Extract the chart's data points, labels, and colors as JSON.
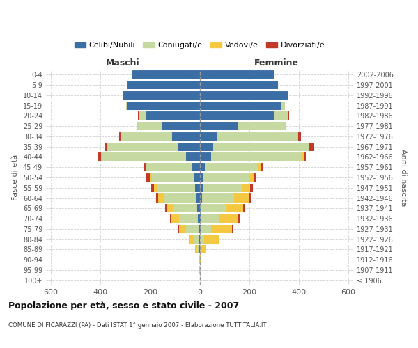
{
  "age_groups": [
    "100+",
    "95-99",
    "90-94",
    "85-89",
    "80-84",
    "75-79",
    "70-74",
    "65-69",
    "60-64",
    "55-59",
    "50-54",
    "45-49",
    "40-44",
    "35-39",
    "30-34",
    "25-29",
    "20-24",
    "15-19",
    "10-14",
    "5-9",
    "0-4"
  ],
  "birth_years": [
    "≤ 1906",
    "1907-1911",
    "1912-1916",
    "1917-1921",
    "1922-1926",
    "1927-1931",
    "1932-1936",
    "1937-1941",
    "1942-1946",
    "1947-1951",
    "1952-1956",
    "1957-1961",
    "1962-1966",
    "1967-1971",
    "1972-1976",
    "1977-1981",
    "1982-1986",
    "1987-1991",
    "1992-1996",
    "1997-2001",
    "2002-2006"
  ],
  "males": {
    "celibi": [
      0,
      0,
      0,
      2,
      3,
      5,
      8,
      10,
      15,
      18,
      22,
      30,
      55,
      85,
      110,
      150,
      215,
      290,
      310,
      290,
      275
    ],
    "coniugati": [
      0,
      0,
      2,
      8,
      20,
      50,
      75,
      95,
      130,
      155,
      170,
      185,
      340,
      285,
      205,
      100,
      30,
      8,
      2,
      0,
      0
    ],
    "vedovi": [
      0,
      1,
      3,
      8,
      20,
      28,
      32,
      28,
      22,
      12,
      8,
      4,
      4,
      3,
      2,
      1,
      2,
      0,
      0,
      0,
      0
    ],
    "divorziati": [
      0,
      0,
      0,
      0,
      0,
      2,
      5,
      5,
      8,
      10,
      14,
      5,
      10,
      10,
      7,
      3,
      2,
      0,
      0,
      0,
      0
    ]
  },
  "females": {
    "nubili": [
      0,
      0,
      0,
      2,
      2,
      3,
      5,
      5,
      10,
      12,
      15,
      20,
      45,
      55,
      70,
      155,
      300,
      330,
      355,
      315,
      300
    ],
    "coniugate": [
      0,
      0,
      2,
      5,
      15,
      42,
      72,
      100,
      130,
      160,
      185,
      215,
      370,
      385,
      325,
      190,
      58,
      15,
      3,
      2,
      0
    ],
    "vedove": [
      0,
      2,
      5,
      20,
      60,
      85,
      78,
      72,
      58,
      32,
      18,
      10,
      5,
      3,
      2,
      1,
      1,
      0,
      0,
      0,
      0
    ],
    "divorziate": [
      0,
      0,
      0,
      0,
      2,
      5,
      8,
      5,
      8,
      12,
      12,
      10,
      10,
      20,
      12,
      5,
      2,
      0,
      0,
      0,
      0
    ]
  },
  "colors": {
    "celibi": "#3b6ea5",
    "coniugati": "#c5d9a0",
    "vedovi": "#f5c842",
    "divorziati": "#c0392b"
  },
  "xlim": 620,
  "title": "Popolazione per età, sesso e stato civile - 2007",
  "subtitle": "COMUNE DI FICARAZZI (PA) - Dati ISTAT 1° gennaio 2007 - Elaborazione TUTTITALIA.IT",
  "legend_labels": [
    "Celibi/Nubili",
    "Coniugati/e",
    "Vedovi/e",
    "Divorziati/e"
  ],
  "label_maschi": "Maschi",
  "label_femmine": "Femmine",
  "ylabel_left": "Fasce di età",
  "ylabel_right": "Anni di nascita",
  "bg_color": "#ffffff",
  "grid_color": "#cccccc"
}
